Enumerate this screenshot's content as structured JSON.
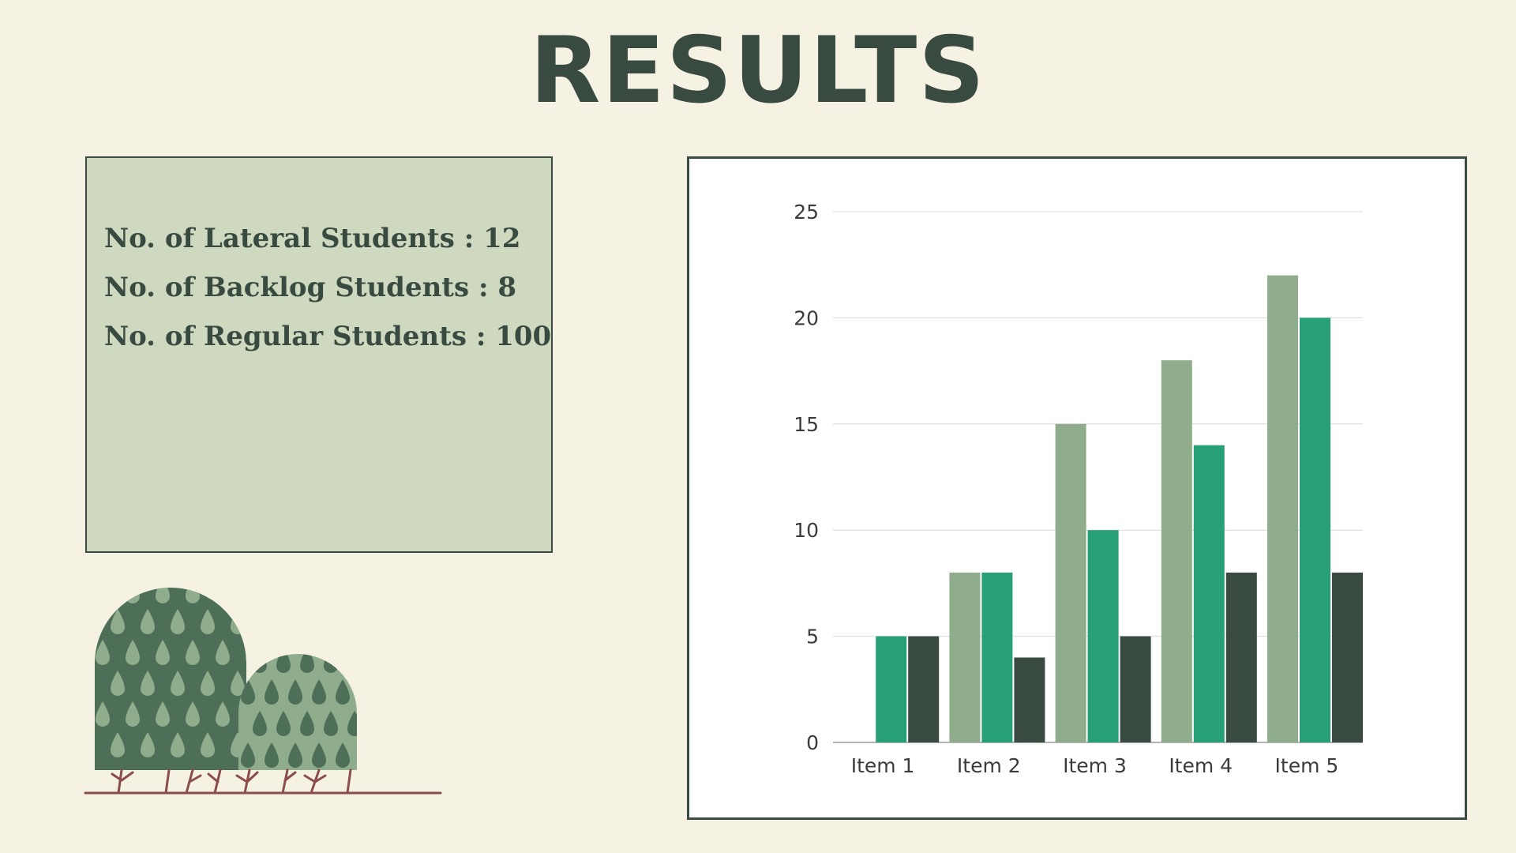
{
  "title": "RESULTS",
  "info": {
    "lines": [
      "No. of Lateral Students : 12",
      "No. of Backlog Students : 8",
      "No. of Regular Students : 100"
    ]
  },
  "colors": {
    "background": "#f6f2e3",
    "dark_green": "#394b41",
    "sage": "#8fad8d",
    "emerald": "#27a078",
    "box_fill": "#cfd9bf"
  },
  "chart_data": {
    "type": "bar",
    "categories": [
      "Item 1",
      "Item 2",
      "Item 3",
      "Item 4",
      "Item 5"
    ],
    "series": [
      {
        "values": [
          0,
          8,
          15,
          18,
          22
        ],
        "color": "#8fad8d"
      },
      {
        "values": [
          5,
          8,
          10,
          14,
          20
        ],
        "color": "#27a078"
      },
      {
        "values": [
          5,
          4,
          5,
          8,
          8
        ],
        "color": "#394b41"
      }
    ],
    "ylim": [
      0,
      25
    ],
    "yticks": [
      0,
      5,
      10,
      15,
      20,
      25
    ],
    "grid": true,
    "legend": "none"
  }
}
